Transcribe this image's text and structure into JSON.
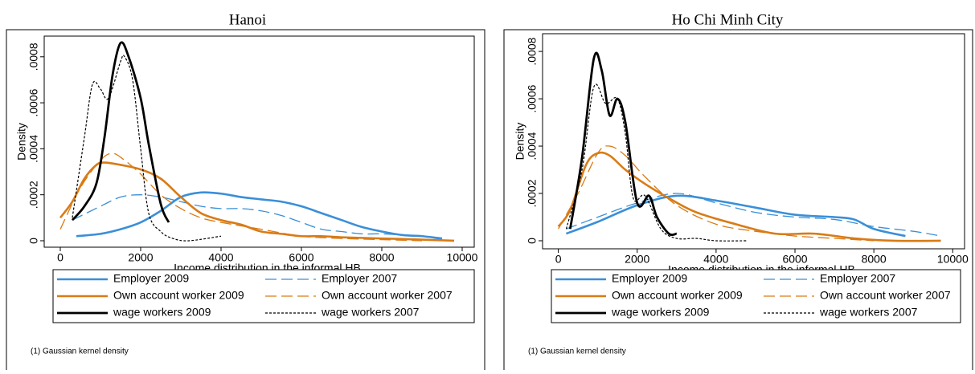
{
  "chart_data": [
    {
      "type": "line",
      "title": "Hanoi",
      "y_label": "Density",
      "x_label": "Income distribution in the informal  HB",
      "note": "(1) Gaussian kernel density",
      "xlim": [
        -400,
        10300
      ],
      "ylim": [
        -2.8e-05,
        0.00089
      ],
      "xticks": [
        0,
        2000,
        4000,
        6000,
        8000,
        10000
      ],
      "yticks": [
        0,
        {
          "value": 0.0002,
          "label": ".0002"
        },
        {
          "value": 0.0004,
          "label": ".0004"
        },
        {
          "value": 0.0006,
          "label": ".0006"
        },
        {
          "value": 0.0008,
          "label": ".0008"
        }
      ],
      "series": [
        {
          "name": "Employer 2009",
          "color": "#3a8fd8",
          "style": "solid",
          "x": [
            400,
            1000,
            1500,
            2000,
            2500,
            3000,
            3500,
            4000,
            4500,
            5000,
            5500,
            6000,
            6500,
            7000,
            7500,
            8000,
            8500,
            9000,
            9500
          ],
          "values": [
            2e-05,
            3e-05,
            5e-05,
            8e-05,
            0.00013,
            0.00019,
            0.00021,
            0.000205,
            0.00019,
            0.00018,
            0.00017,
            0.00015,
            0.00012,
            9e-05,
            6e-05,
            4e-05,
            2.5e-05,
            2e-05,
            1e-05
          ]
        },
        {
          "name": "Employer 2007",
          "color": "#3a8fd8",
          "style": "dashed",
          "x": [
            300,
            1000,
            1500,
            2000,
            2500,
            3000,
            3500,
            4000,
            4500,
            5000,
            5500,
            6000,
            6500,
            7000,
            7500,
            8000,
            8500,
            9000,
            9500
          ],
          "values": [
            9e-05,
            0.00015,
            0.00019,
            0.0002,
            0.00019,
            0.00017,
            0.00015,
            0.00014,
            0.00014,
            0.00013,
            0.00011,
            8e-05,
            5e-05,
            4e-05,
            3e-05,
            3e-05,
            2.5e-05,
            2e-05,
            5e-06
          ]
        },
        {
          "name": "Own account worker 2009",
          "color": "#d97b16",
          "style": "solid",
          "x": [
            0,
            300,
            600,
            900,
            1100,
            1500,
            2000,
            2500,
            3000,
            3500,
            4000,
            4500,
            5000,
            5500,
            6000,
            6500,
            7000,
            8000,
            9000,
            9800
          ],
          "values": [
            0.0001,
            0.00017,
            0.00027,
            0.00033,
            0.00034,
            0.00033,
            0.00031,
            0.00027,
            0.00019,
            0.00012,
            9e-05,
            7e-05,
            4e-05,
            3e-05,
            2e-05,
            2e-05,
            1.5e-05,
            1e-05,
            5e-06,
            0
          ]
        },
        {
          "name": "Own account worker 2007",
          "color": "#d97b16",
          "style": "dashed",
          "x": [
            0,
            500,
            1000,
            1300,
            1600,
            2000,
            2500,
            3000,
            3500,
            4000,
            5000,
            6000,
            7000,
            8000,
            9000
          ],
          "values": [
            5e-05,
            0.00023,
            0.00035,
            0.00038,
            0.00035,
            0.00029,
            0.0002,
            0.00014,
            0.0001,
            8e-05,
            5e-05,
            2e-05,
            1e-05,
            5e-06,
            0
          ]
        },
        {
          "name": "wage workers 2009",
          "color": "#000000",
          "style": "bold",
          "x": [
            300,
            600,
            900,
            1100,
            1300,
            1500,
            1700,
            2000,
            2200,
            2500,
            2700
          ],
          "values": [
            9e-05,
            0.00015,
            0.00025,
            0.00045,
            0.00072,
            0.00086,
            0.0008,
            0.00062,
            0.00042,
            0.00016,
            8e-05
          ]
        },
        {
          "name": "wage workers 2007",
          "color": "#000000",
          "style": "dotted",
          "x": [
            300,
            600,
            800,
            1000,
            1200,
            1500,
            1600,
            1800,
            2000,
            2200,
            2500,
            2800,
            3200,
            4000
          ],
          "values": [
            0.0001,
            0.00045,
            0.00068,
            0.00066,
            0.00062,
            0.00078,
            0.0008,
            0.0007,
            0.0004,
            0.00012,
            4e-05,
            1e-05,
            0,
            2e-05
          ]
        }
      ]
    },
    {
      "type": "line",
      "title": "Ho Chi Minh City",
      "y_label": "Density",
      "x_label": "Income distribution in the informal  HB",
      "note": "(1) Gaussian kernel density",
      "xlim": [
        -400,
        10300
      ],
      "ylim": [
        -3.4e-05,
        0.000875
      ],
      "xticks": [
        0,
        2000,
        4000,
        6000,
        8000,
        10000
      ],
      "yticks": [
        0,
        {
          "value": 0.0002,
          "label": ".0002"
        },
        {
          "value": 0.0004,
          "label": ".0004"
        },
        {
          "value": 0.0006,
          "label": ".0006"
        },
        {
          "value": 0.0008,
          "label": ".0008"
        }
      ],
      "series": [
        {
          "name": "Employer 2009",
          "color": "#3a8fd8",
          "style": "solid",
          "x": [
            200,
            1000,
            2000,
            3000,
            4000,
            5000,
            6000,
            7000,
            7500,
            8000,
            8800
          ],
          "values": [
            3e-05,
            8e-05,
            0.00015,
            0.00019,
            0.00017,
            0.00014,
            0.00011,
            0.0001,
            9e-05,
            5e-05,
            2e-05
          ]
        },
        {
          "name": "Employer 2007",
          "color": "#3a8fd8",
          "style": "dashed",
          "x": [
            200,
            1000,
            2000,
            3000,
            4000,
            5000,
            6000,
            7000,
            8000,
            9000,
            9700
          ],
          "values": [
            5e-05,
            0.0001,
            0.00016,
            0.0002,
            0.00016,
            0.00012,
            0.0001,
            9e-05,
            6e-05,
            4e-05,
            2e-05
          ]
        },
        {
          "name": "Own account worker 2009",
          "color": "#d97b16",
          "style": "solid",
          "x": [
            0,
            300,
            700,
            1000,
            1300,
            1700,
            2200,
            2800,
            3500,
            4500,
            5500,
            6500,
            7500,
            8500,
            9700
          ],
          "values": [
            6e-05,
            0.00013,
            0.00032,
            0.00037,
            0.00036,
            0.0003,
            0.00024,
            0.00018,
            0.00012,
            7e-05,
            3e-05,
            3e-05,
            1e-05,
            0,
            0
          ]
        },
        {
          "name": "Own account worker 2007",
          "color": "#d97b16",
          "style": "dashed",
          "x": [
            0,
            500,
            1000,
            1300,
            1700,
            2200,
            3000,
            4000,
            5000,
            6000,
            7000,
            8000
          ],
          "values": [
            5e-05,
            0.0002,
            0.00037,
            0.0004,
            0.00036,
            0.00027,
            0.00015,
            7e-05,
            4e-05,
            2e-05,
            1e-05,
            0
          ]
        },
        {
          "name": "wage workers 2009",
          "color": "#000000",
          "style": "bold",
          "x": [
            300,
            600,
            900,
            1100,
            1300,
            1500,
            1700,
            2000,
            2300,
            2500,
            2800,
            3000
          ],
          "values": [
            5e-05,
            0.00035,
            0.00077,
            0.00072,
            0.00053,
            0.0006,
            0.0005,
            0.00016,
            0.00019,
            0.0001,
            3e-05,
            3e-05
          ]
        },
        {
          "name": "wage workers 2007",
          "color": "#000000",
          "style": "dotted",
          "x": [
            200,
            600,
            900,
            1200,
            1500,
            1700,
            1900,
            2200,
            2600,
            3000,
            3500,
            4000,
            4800
          ],
          "values": [
            5e-05,
            0.0003,
            0.00065,
            0.00058,
            0.0006,
            0.00045,
            0.00018,
            0.00019,
            5e-05,
            1e-05,
            1e-05,
            0,
            0
          ]
        }
      ]
    }
  ]
}
